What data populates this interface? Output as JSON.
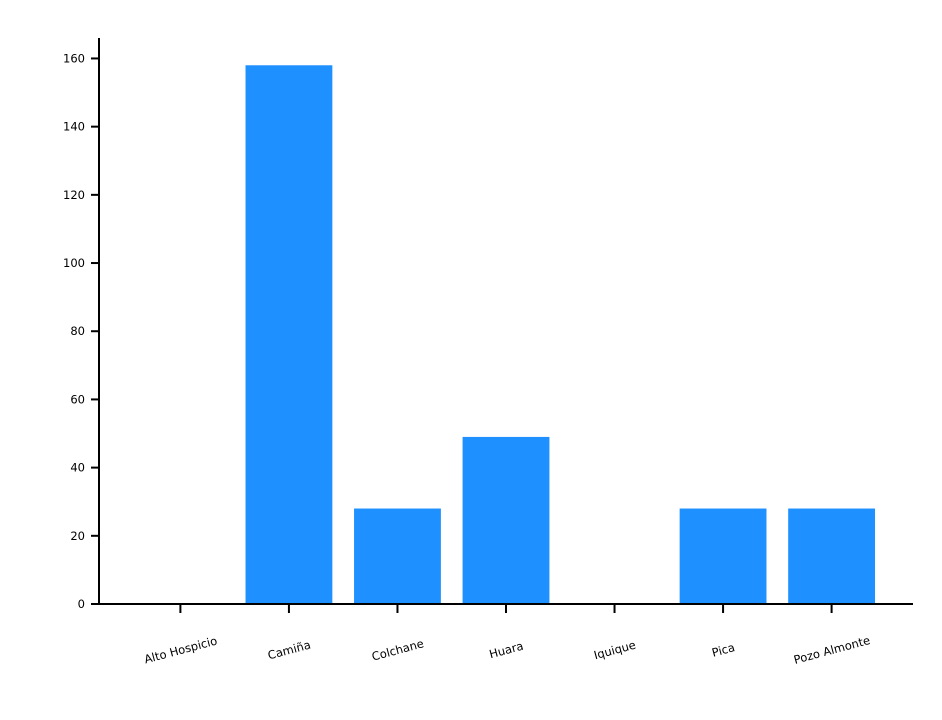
{
  "chart_data": {
    "type": "bar",
    "categories": [
      "Alto Hospicio",
      "Camiña",
      "Colchane",
      "Huara",
      "Iquique",
      "Pica",
      "Pozo Almonte"
    ],
    "values": [
      0,
      158,
      28,
      49,
      0,
      28,
      28
    ],
    "color": "#1e90ff",
    "ylim": [
      0,
      166
    ],
    "yticks": [
      0,
      20,
      40,
      60,
      80,
      100,
      120,
      140,
      160
    ]
  }
}
